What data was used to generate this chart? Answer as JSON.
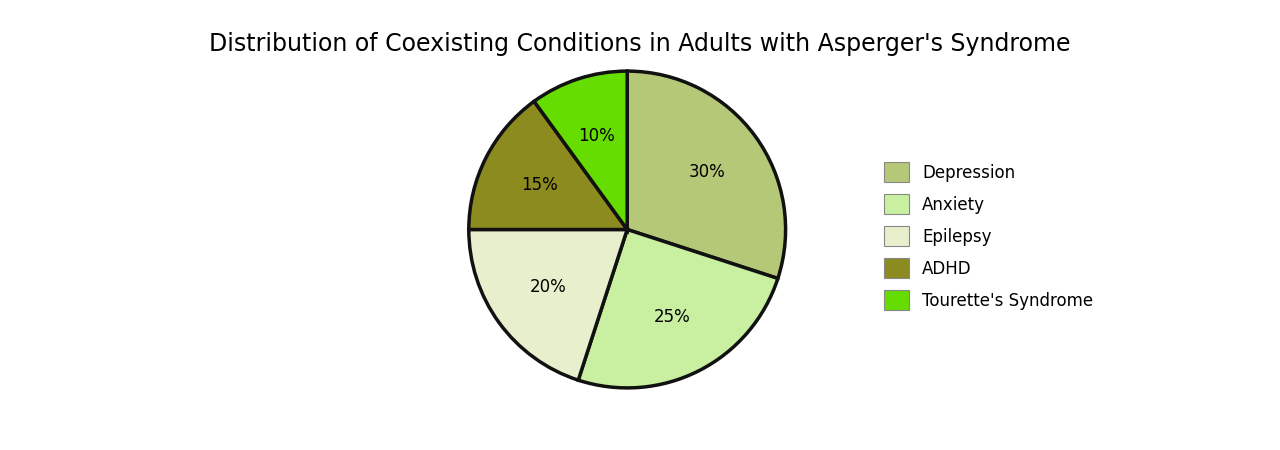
{
  "title": "Distribution of Coexisting Conditions in Adults with Asperger's Syndrome",
  "labels": [
    "Depression",
    "Anxiety",
    "Epilepsy",
    "ADHD",
    "Tourette's Syndrome"
  ],
  "values": [
    30,
    25,
    20,
    15,
    10
  ],
  "colors": [
    "#b5c878",
    "#c8f0a0",
    "#e8efcc",
    "#8b8b20",
    "#66dd00"
  ],
  "startangle": 90,
  "pct_labels": [
    "30%",
    "25%",
    "20%",
    "15%",
    "10%"
  ],
  "title_fontsize": 17,
  "label_fontsize": 12,
  "legend_fontsize": 12,
  "edge_color": "#111111",
  "edge_width": 2.5,
  "legend_colors": [
    "#b5c878",
    "#c8f0a0",
    "#e8efcc",
    "#8b8b20",
    "#66dd00"
  ]
}
